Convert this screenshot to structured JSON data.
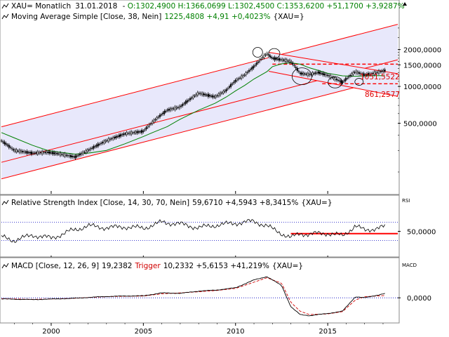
{
  "header": {
    "symbol": "XAU",
    "interval": "= Monatlich",
    "date": "31.01.2018",
    "ohlc_green": "O:1302,4900 H:1366,0699 L:1302,4500 C:1353,6200 +51,1700 +3,9287%",
    "ma_label": "Moving Average Simple [Close, 38, Nein]",
    "ma_values": "1225,4808 +4,91 +0,4023%",
    "ma_suffix": "{XAU=}"
  },
  "rsi_panel": {
    "title": "Relative Strength Index [Close, 14, 30, 70, Nein]",
    "values": "59,6710 +4,5943 +8,3415%",
    "suffix": "{XAU=}",
    "axis_tag": "RSI"
  },
  "macd_panel": {
    "title": "MACD [Close, 12, 26, 9]",
    "value": "19,2382",
    "trigger_label": "Trigger",
    "trigger_values": "10,2332 +5,6153 +41,219%",
    "suffix": "{XAU=}",
    "axis_tag": "MACD"
  },
  "annotations": {
    "level_1": "1051,5522",
    "level_2": "861,2577"
  },
  "colors": {
    "price": "#000000",
    "ma": "#008000",
    "channel": "#ff0000",
    "channel_fill": "#e8e8fb",
    "rsi_band": "#0000c0",
    "trigger": "#d00000",
    "positive": "#008000"
  },
  "chart_data": [
    {
      "type": "line",
      "panel": "price",
      "y_scale": "log",
      "ylim": [
        140,
        3200
      ],
      "yticks": [
        "2000,0000",
        "1500,0000",
        "1000,0000",
        "500,0000"
      ],
      "ytick_values": [
        2000,
        1500,
        1000,
        500
      ],
      "x_labels": [
        "2000",
        "2005",
        "2010",
        "2015"
      ],
      "xlim": [
        1997.3,
        2018.8
      ],
      "x": [
        1997.3,
        1998,
        1999,
        1999.8,
        2000.5,
        2001.3,
        2002,
        2003,
        2004,
        2005,
        2005.5,
        2006.3,
        2007,
        2008,
        2008.9,
        2009.5,
        2010,
        2010.5,
        2011,
        2011.7,
        2012,
        2012.5,
        2013,
        2013.5,
        2014,
        2014.5,
        2015,
        2015.8,
        2016.5,
        2017,
        2017.5,
        2018.1
      ],
      "series": [
        {
          "values": [
            360,
            300,
            285,
            290,
            280,
            265,
            300,
            360,
            410,
            430,
            510,
            640,
            680,
            880,
            820,
            930,
            1110,
            1240,
            1450,
            1850,
            1700,
            1650,
            1600,
            1280,
            1250,
            1300,
            1230,
            1080,
            1320,
            1240,
            1280,
            1350
          ]
        },
        {
          "name": "Moving Average Simple [Close, 38, Nein]",
          "values": [
            420,
            380,
            330,
            300,
            290,
            280,
            285,
            300,
            340,
            390,
            420,
            470,
            540,
            640,
            730,
            820,
            920,
            1020,
            1150,
            1320,
            1450,
            1530,
            1560,
            1520,
            1420,
            1350,
            1280,
            1220,
            1210,
            1220,
            1225,
            1225
          ]
        }
      ],
      "levels": [
        1520,
        1051.5522,
        861.2577
      ]
    },
    {
      "type": "line",
      "panel": "rsi",
      "ylim": [
        0,
        100
      ],
      "yticks": [
        "50,0000"
      ],
      "ytick_values": [
        50
      ],
      "bands": [
        30,
        70
      ],
      "x_labels": [
        "2000",
        "2005",
        "2010",
        "2015"
      ],
      "x": [
        1997.3,
        1998,
        1999,
        2000,
        2001,
        2002,
        2003,
        2004,
        2005,
        2006,
        2007,
        2008,
        2009,
        2010,
        2011,
        2011.7,
        2012,
        2013,
        2013.5,
        2014,
        2015,
        2015.8,
        2016.5,
        2017,
        2017.5,
        2018.1
      ],
      "series": [
        {
          "name": "Relative Strength Index [Close, 14, 30, 70, Nein]",
          "values": [
            38,
            30,
            42,
            35,
            50,
            62,
            58,
            60,
            57,
            70,
            66,
            58,
            64,
            68,
            72,
            62,
            55,
            36,
            45,
            44,
            46,
            40,
            62,
            52,
            56,
            59.67
          ]
        }
      ],
      "level": 45
    },
    {
      "type": "line",
      "panel": "macd",
      "ylim": [
        -100,
        120
      ],
      "yticks": [
        "0,0000"
      ],
      "ytick_values": [
        0
      ],
      "x_labels": [
        "2000",
        "2005",
        "2010",
        "2015"
      ],
      "x": [
        1997.3,
        1999,
        2001,
        2003,
        2004,
        2005,
        2006,
        2007,
        2008,
        2009,
        2010,
        2011,
        2011.7,
        2012.5,
        2013,
        2013.5,
        2014,
        2015,
        2015.8,
        2016.5,
        2017,
        2018.1
      ],
      "series": [
        {
          "name": "MACD [Close, 12, 26, 9]",
          "values": [
            -5,
            -8,
            -3,
            6,
            8,
            9,
            22,
            20,
            30,
            35,
            45,
            80,
            95,
            55,
            -40,
            -75,
            -80,
            -70,
            -60,
            5,
            0,
            19.24
          ]
        },
        {
          "name": "Trigger",
          "values": [
            -4,
            -7,
            -3,
            5,
            7,
            8,
            18,
            22,
            27,
            33,
            42,
            70,
            90,
            65,
            -20,
            -60,
            -75,
            -72,
            -62,
            -10,
            5,
            10.23
          ]
        }
      ]
    }
  ]
}
